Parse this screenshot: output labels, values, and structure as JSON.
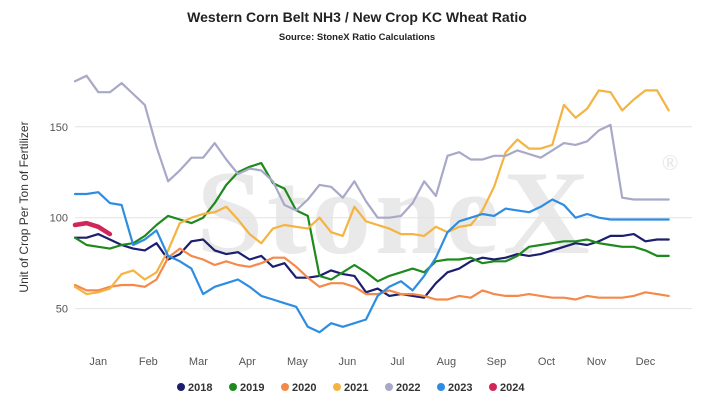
{
  "chart_data": {
    "type": "line",
    "title": "Western Corn Belt NH3 / New Crop KC Wheat Ratio",
    "subtitle": "Source: StoneX Ratio Calculations",
    "xlabel": "",
    "ylabel": "Unit of Crop Per Ton of Fertilizer",
    "watermark": "StoneX",
    "watermark_mark": "®",
    "ylim": [
      30,
      190
    ],
    "xlim": [
      0,
      53
    ],
    "y_ticks": [
      50,
      100,
      150
    ],
    "x_ticks": [
      {
        "label": "Jan",
        "x": 2
      },
      {
        "label": "Feb",
        "x": 6.3
      },
      {
        "label": "Mar",
        "x": 10.6
      },
      {
        "label": "Apr",
        "x": 14.8
      },
      {
        "label": "May",
        "x": 19.1
      },
      {
        "label": "Jun",
        "x": 23.4
      },
      {
        "label": "Jul",
        "x": 27.7
      },
      {
        "label": "Aug",
        "x": 31.9
      },
      {
        "label": "Sep",
        "x": 36.2
      },
      {
        "label": "Oct",
        "x": 40.5
      },
      {
        "label": "Nov",
        "x": 44.8
      },
      {
        "label": "Dec",
        "x": 49
      }
    ],
    "grid": true,
    "legend_position": "bottom",
    "series": [
      {
        "name": "2018",
        "color": "#1b1f6e",
        "width": 2.2,
        "x": [
          0,
          1,
          2,
          3,
          4,
          5,
          6,
          7,
          8,
          9,
          10,
          11,
          12,
          13,
          14,
          15,
          16,
          17,
          18,
          19,
          20,
          21,
          22,
          23,
          24,
          25,
          26,
          27,
          28,
          29,
          30,
          31,
          32,
          33,
          34,
          35,
          36,
          37,
          38,
          39,
          40,
          41,
          42,
          43,
          44,
          45,
          46,
          47,
          48,
          49,
          50,
          51
        ],
        "y": [
          89,
          89,
          91,
          88,
          85,
          83,
          82,
          86,
          77,
          80,
          87,
          88,
          82,
          80,
          81,
          77,
          79,
          73,
          75,
          67,
          67,
          68,
          71,
          69,
          68,
          59,
          61,
          57,
          58,
          57,
          56,
          64,
          70,
          72,
          76,
          78,
          77,
          78,
          80,
          79,
          80,
          82,
          84,
          86,
          85,
          87,
          90,
          90,
          91,
          87,
          88,
          88
        ]
      },
      {
        "name": "2019",
        "color": "#1e8a1e",
        "width": 2.2,
        "x": [
          0,
          1,
          2,
          3,
          4,
          5,
          6,
          7,
          8,
          9,
          10,
          11,
          12,
          13,
          14,
          15,
          16,
          17,
          18,
          19,
          20,
          21,
          22,
          23,
          24,
          25,
          26,
          27,
          28,
          29,
          30,
          31,
          32,
          33,
          34,
          35,
          36,
          37,
          38,
          39,
          40,
          41,
          42,
          43,
          44,
          45,
          46,
          47,
          48,
          49,
          50,
          51
        ],
        "y": [
          89,
          85,
          84,
          83,
          85,
          86,
          90,
          96,
          101,
          99,
          97,
          100,
          108,
          118,
          125,
          128,
          130,
          119,
          116,
          104,
          101,
          68,
          66,
          70,
          74,
          70,
          65,
          68,
          70,
          72,
          70,
          76,
          77,
          77,
          78,
          75,
          76,
          76,
          79,
          84,
          85,
          86,
          87,
          87,
          88,
          86,
          85,
          84,
          84,
          82,
          79,
          79
        ]
      },
      {
        "name": "2020",
        "color": "#f5894a",
        "width": 2.2,
        "x": [
          0,
          1,
          2,
          3,
          4,
          5,
          6,
          7,
          8,
          9,
          10,
          11,
          12,
          13,
          14,
          15,
          16,
          17,
          18,
          19,
          20,
          21,
          22,
          23,
          24,
          25,
          26,
          27,
          28,
          29,
          30,
          31,
          32,
          33,
          34,
          35,
          36,
          37,
          38,
          39,
          40,
          41,
          42,
          43,
          44,
          45,
          46,
          47,
          48,
          49,
          50,
          51
        ],
        "y": [
          63,
          60,
          60,
          62,
          63,
          63,
          62,
          66,
          78,
          83,
          79,
          77,
          74,
          76,
          74,
          73,
          75,
          78,
          78,
          73,
          67,
          62,
          64,
          64,
          62,
          58,
          58,
          60,
          58,
          58,
          57,
          55,
          55,
          57,
          56,
          60,
          58,
          57,
          57,
          58,
          57,
          56,
          56,
          55,
          57,
          56,
          56,
          56,
          57,
          59,
          58,
          57
        ]
      },
      {
        "name": "2021",
        "color": "#f5b342",
        "width": 2.2,
        "x": [
          0,
          1,
          2,
          3,
          4,
          5,
          6,
          7,
          8,
          9,
          10,
          11,
          12,
          13,
          14,
          15,
          16,
          17,
          18,
          19,
          20,
          21,
          22,
          23,
          24,
          25,
          26,
          27,
          28,
          29,
          30,
          31,
          32,
          33,
          34,
          35,
          36,
          37,
          38,
          39,
          40,
          41,
          42,
          43,
          44,
          45,
          46,
          47,
          48,
          49,
          50,
          51
        ],
        "y": [
          62,
          58,
          59,
          61,
          69,
          71,
          66,
          70,
          82,
          97,
          100,
          102,
          103,
          106,
          99,
          91,
          86,
          94,
          96,
          95,
          94,
          100,
          92,
          90,
          106,
          98,
          96,
          94,
          91,
          91,
          90,
          95,
          92,
          95,
          96,
          104,
          117,
          136,
          143,
          138,
          138,
          140,
          162,
          155,
          160,
          170,
          169,
          159,
          165,
          170,
          170,
          159
        ]
      },
      {
        "name": "2022",
        "color": "#a8a8c8",
        "width": 2.2,
        "x": [
          0,
          1,
          2,
          3,
          4,
          5,
          6,
          7,
          8,
          9,
          10,
          11,
          12,
          13,
          14,
          15,
          16,
          17,
          18,
          19,
          20,
          21,
          22,
          23,
          24,
          25,
          26,
          27,
          28,
          29,
          30,
          31,
          32,
          33,
          34,
          35,
          36,
          37,
          38,
          39,
          40,
          41,
          42,
          43,
          44,
          45,
          46,
          47,
          48,
          49,
          50,
          51
        ],
        "y": [
          175,
          178,
          169,
          169,
          174,
          168,
          162,
          139,
          120,
          126,
          133,
          133,
          141,
          132,
          124,
          127,
          126,
          120,
          107,
          104,
          110,
          118,
          117,
          111,
          120,
          109,
          100,
          100,
          101,
          108,
          120,
          112,
          134,
          136,
          132,
          132,
          134,
          134,
          137,
          135,
          133,
          137,
          141,
          140,
          142,
          148,
          151,
          111,
          110,
          110,
          110,
          110
        ]
      },
      {
        "name": "2023",
        "color": "#2e8de0",
        "width": 2.2,
        "x": [
          0,
          1,
          2,
          3,
          4,
          5,
          6,
          7,
          8,
          9,
          10,
          11,
          12,
          13,
          14,
          15,
          16,
          17,
          18,
          19,
          20,
          21,
          22,
          23,
          24,
          25,
          26,
          27,
          28,
          29,
          30,
          31,
          32,
          33,
          34,
          35,
          36,
          37,
          38,
          39,
          40,
          41,
          42,
          43,
          44,
          45,
          46,
          47,
          48,
          49,
          50,
          51
        ],
        "y": [
          113,
          113,
          114,
          108,
          107,
          85,
          88,
          93,
          79,
          76,
          72,
          58,
          62,
          64,
          66,
          62,
          57,
          55,
          53,
          51,
          40,
          37,
          42,
          40,
          42,
          44,
          57,
          62,
          65,
          60,
          68,
          78,
          92,
          98,
          100,
          102,
          101,
          105,
          104,
          103,
          106,
          110,
          107,
          100,
          102,
          100,
          99,
          99,
          99,
          99,
          99,
          99
        ]
      },
      {
        "name": "2024",
        "color": "#d1265a",
        "width": 4.5,
        "x": [
          0,
          1,
          2,
          3
        ],
        "y": [
          96,
          97,
          95,
          91
        ]
      }
    ]
  }
}
